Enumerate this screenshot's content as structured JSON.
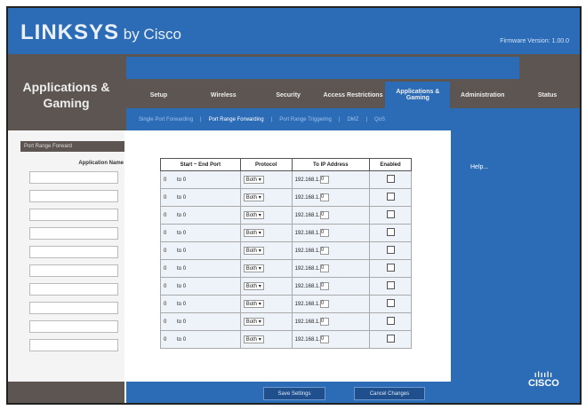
{
  "header": {
    "brand": "LINKSYS",
    "brand_suffix": "by Cisco",
    "firmware": "Firmware Version: 1.00.0"
  },
  "section_title": "Applications & Gaming",
  "tabs": [
    {
      "label": "Setup"
    },
    {
      "label": "Wireless"
    },
    {
      "label": "Security"
    },
    {
      "label": "Access Restrictions"
    },
    {
      "label": "Applications & Gaming",
      "active": true
    },
    {
      "label": "Administration"
    },
    {
      "label": "Status"
    }
  ],
  "subtabs": [
    {
      "label": "Single Port Forwarding"
    },
    {
      "label": "Port Range Forwarding",
      "active": true
    },
    {
      "label": "Port Range Triggering"
    },
    {
      "label": "DMZ"
    },
    {
      "label": "QoS"
    }
  ],
  "sidebar": {
    "header": "Port Range Forward",
    "app_label": "Application Name"
  },
  "table": {
    "headers": [
      "Start ~ End Port",
      "Protocol",
      "To IP Address",
      "Enabled"
    ],
    "rows": [
      {
        "start": "0",
        "end": "0",
        "protocol": "Both",
        "ip_prefix": "192.168.1.",
        "ip_last": "0",
        "enabled": false
      },
      {
        "start": "0",
        "end": "0",
        "protocol": "Both",
        "ip_prefix": "192.168.1.",
        "ip_last": "0",
        "enabled": false
      },
      {
        "start": "0",
        "end": "0",
        "protocol": "Both",
        "ip_prefix": "192.168.1.",
        "ip_last": "0",
        "enabled": false
      },
      {
        "start": "0",
        "end": "0",
        "protocol": "Both",
        "ip_prefix": "192.168.1.",
        "ip_last": "0",
        "enabled": false
      },
      {
        "start": "0",
        "end": "0",
        "protocol": "Both",
        "ip_prefix": "192.168.1.",
        "ip_last": "0",
        "enabled": false
      },
      {
        "start": "0",
        "end": "0",
        "protocol": "Both",
        "ip_prefix": "192.168.1.",
        "ip_last": "0",
        "enabled": false
      },
      {
        "start": "0",
        "end": "0",
        "protocol": "Both",
        "ip_prefix": "192.168.1.",
        "ip_last": "0",
        "enabled": false
      },
      {
        "start": "0",
        "end": "0",
        "protocol": "Both",
        "ip_prefix": "192.168.1.",
        "ip_last": "0",
        "enabled": false
      },
      {
        "start": "0",
        "end": "0",
        "protocol": "Both",
        "ip_prefix": "192.168.1.",
        "ip_last": "0",
        "enabled": false
      },
      {
        "start": "0",
        "end": "0",
        "protocol": "Both",
        "ip_prefix": "192.168.1.",
        "ip_last": "0",
        "enabled": false
      }
    ],
    "to_label": "to"
  },
  "help": "Help...",
  "buttons": {
    "save": "Save Settings",
    "cancel": "Cancel Changes"
  },
  "cisco_logo": "CISCO",
  "colors": {
    "blue": "#2c6cb7",
    "gray": "#5c5552"
  }
}
